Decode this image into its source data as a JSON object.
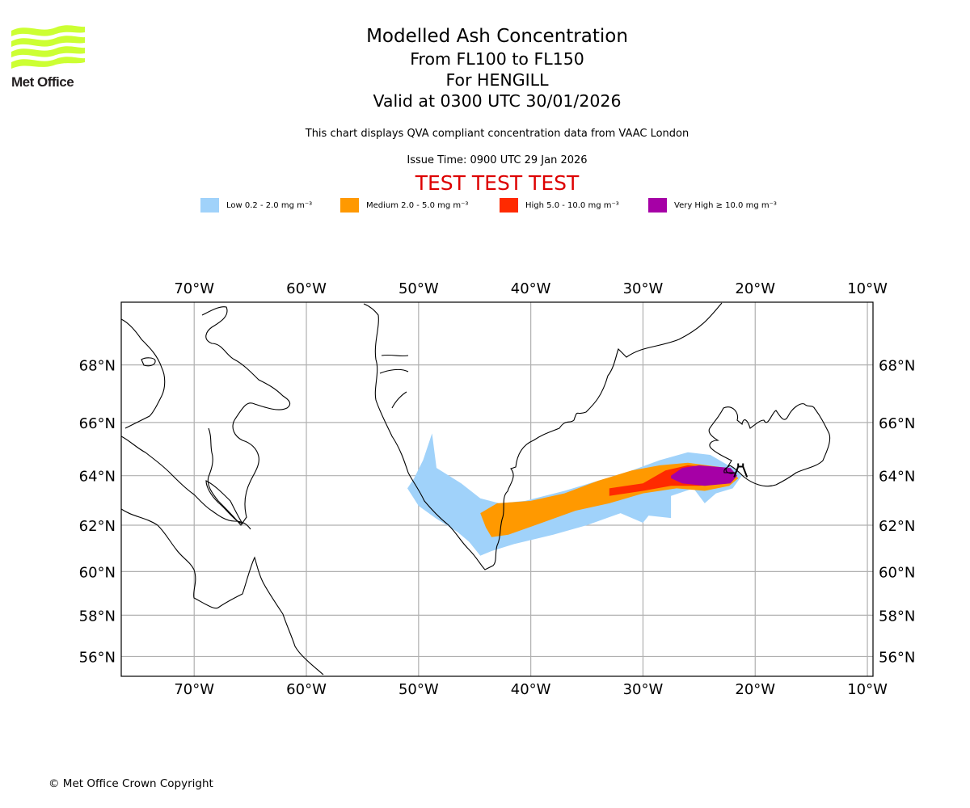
{
  "brand": {
    "name": "Met Office",
    "logo_color": "#ccff33"
  },
  "header": {
    "title": "Modelled Ash Concentration",
    "levels": "From FL100 to FL150",
    "volcano": "For HENGILL",
    "valid": "Valid at 0300 UTC 30/01/2026",
    "note": "This chart displays QVA compliant concentration data from VAAC London",
    "issue_time": "Issue Time: 0900 UTC 29 Jan 2026",
    "test_banner": "TEST TEST TEST"
  },
  "legend": [
    {
      "label": "Low 0.2 - 2.0 mg m⁻³",
      "color": "#a0d2fa"
    },
    {
      "label": "Medium 2.0 - 5.0 mg m⁻³",
      "color": "#ff9900"
    },
    {
      "label": "High 5.0 - 10.0 mg m⁻³",
      "color": "#ff2a00"
    },
    {
      "label": "Very High ≥ 10.0 mg m⁻³",
      "color": "#a600a6"
    }
  ],
  "chart_data": {
    "type": "map",
    "title": "Modelled Ash Concentration",
    "extent": {
      "lon": [
        -76.5,
        -9.5
      ],
      "lat": [
        55,
        70
      ]
    },
    "lon_ticks": [
      "70°W",
      "60°W",
      "50°W",
      "40°W",
      "30°W",
      "20°W",
      "10°W"
    ],
    "lon_values": [
      -70,
      -60,
      -50,
      -40,
      -30,
      -20,
      -10
    ],
    "lat_ticks": [
      "68°N",
      "66°N",
      "64°N",
      "62°N",
      "60°N",
      "58°N",
      "56°N"
    ],
    "lat_values": [
      68,
      66,
      64,
      62,
      60,
      58,
      56
    ],
    "grid": true,
    "source_volcano": {
      "name": "HENGILL",
      "lon": -21.3,
      "lat": 64.1
    },
    "ash_regions": [
      {
        "level": "Low",
        "color": "#a0d2fa",
        "polygon": [
          [
            -50.4,
            63.9
          ],
          [
            -49.6,
            64.6
          ],
          [
            -48.8,
            65.6
          ],
          [
            -48.4,
            64.3
          ],
          [
            -46.2,
            63.7
          ],
          [
            -44.5,
            63.1
          ],
          [
            -42.8,
            62.9
          ],
          [
            -40.5,
            63.0
          ],
          [
            -37.0,
            63.4
          ],
          [
            -34.0,
            63.8
          ],
          [
            -31.0,
            64.2
          ],
          [
            -28.5,
            64.6
          ],
          [
            -26.0,
            64.9
          ],
          [
            -24.0,
            64.8
          ],
          [
            -22.0,
            64.3
          ],
          [
            -21.2,
            64.0
          ],
          [
            -22.0,
            63.5
          ],
          [
            -23.5,
            63.3
          ],
          [
            -24.5,
            62.9
          ],
          [
            -25.5,
            63.5
          ],
          [
            -27.5,
            63.2
          ],
          [
            -27.5,
            62.3
          ],
          [
            -29.5,
            62.4
          ],
          [
            -30.0,
            62.1
          ],
          [
            -32.0,
            62.5
          ],
          [
            -35.0,
            62.0
          ],
          [
            -38.0,
            61.6
          ],
          [
            -41.5,
            61.2
          ],
          [
            -43.5,
            60.9
          ],
          [
            -44.5,
            60.7
          ],
          [
            -45.5,
            61.3
          ],
          [
            -46.5,
            61.7
          ],
          [
            -48.5,
            62.3
          ],
          [
            -50.0,
            62.8
          ],
          [
            -51.0,
            63.5
          ]
        ]
      },
      {
        "level": "Medium",
        "color": "#ff9900",
        "polygon": [
          [
            -44.5,
            62.5
          ],
          [
            -43.0,
            62.9
          ],
          [
            -40.0,
            63.0
          ],
          [
            -37.0,
            63.3
          ],
          [
            -34.0,
            63.8
          ],
          [
            -31.0,
            64.2
          ],
          [
            -28.5,
            64.4
          ],
          [
            -26.0,
            64.5
          ],
          [
            -22.5,
            64.3
          ],
          [
            -21.5,
            63.9
          ],
          [
            -22.3,
            63.6
          ],
          [
            -24.5,
            63.4
          ],
          [
            -27.0,
            63.5
          ],
          [
            -30.0,
            63.3
          ],
          [
            -33.0,
            62.9
          ],
          [
            -36.0,
            62.6
          ],
          [
            -39.0,
            62.1
          ],
          [
            -42.0,
            61.6
          ],
          [
            -43.5,
            61.5
          ],
          [
            -44.0,
            61.9
          ]
        ]
      },
      {
        "level": "High",
        "color": "#ff2a00",
        "polygon": [
          [
            -33.0,
            63.5
          ],
          [
            -30.0,
            63.7
          ],
          [
            -28.0,
            64.2
          ],
          [
            -26.0,
            64.4
          ],
          [
            -23.0,
            64.3
          ],
          [
            -21.6,
            64.0
          ],
          [
            -22.3,
            63.7
          ],
          [
            -25.0,
            63.6
          ],
          [
            -27.5,
            63.6
          ],
          [
            -30.0,
            63.4
          ],
          [
            -33.0,
            63.2
          ]
        ]
      },
      {
        "level": "Very High",
        "color": "#a600a6",
        "polygon": [
          [
            -27.5,
            64.0
          ],
          [
            -26.5,
            64.3
          ],
          [
            -25.0,
            64.4
          ],
          [
            -22.2,
            64.3
          ],
          [
            -21.6,
            64.0
          ],
          [
            -22.2,
            63.7
          ],
          [
            -24.5,
            63.6
          ],
          [
            -26.5,
            63.7
          ],
          [
            -27.5,
            63.9
          ]
        ]
      }
    ]
  },
  "footer": {
    "copyright": "© Met Office Crown Copyright"
  }
}
